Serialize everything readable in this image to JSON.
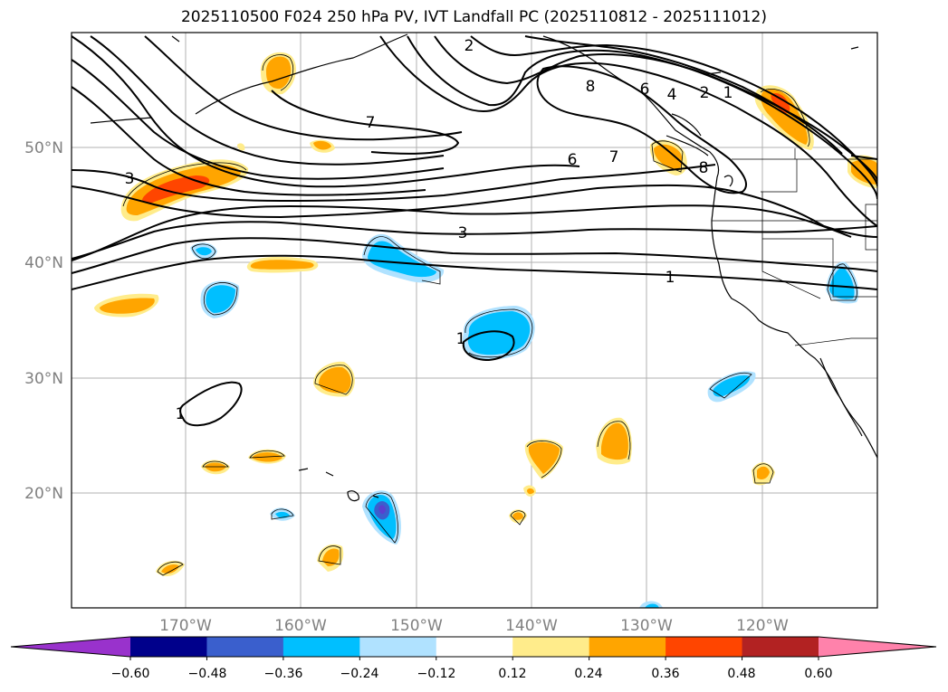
{
  "title": "2025110500 F024 250 hPa PV, IVT Landfall PC (2025110812 - 2025111012)",
  "map": {
    "lat_labels": [
      "50°N",
      "40°N",
      "30°N",
      "20°N"
    ],
    "lon_labels": [
      "170°W",
      "160°W",
      "150°W",
      "140°W",
      "130°W",
      "120°W"
    ],
    "contour_labels": [
      "2",
      "8",
      "6",
      "4",
      "2",
      "1",
      "7",
      "3",
      "6",
      "7",
      "8",
      "3",
      "1",
      "1",
      "1"
    ]
  },
  "colorbar": {
    "ticks": [
      "−0.60",
      "−0.48",
      "−0.36",
      "−0.24",
      "−0.12",
      "0.12",
      "0.24",
      "0.36",
      "0.48",
      "0.60"
    ],
    "colors": [
      "#9932cc",
      "#00008b",
      "#3a5fcd",
      "#00bfff",
      "#b0e2ff",
      "#ffffff",
      "#ffec8b",
      "#ffa500",
      "#ff4500",
      "#b22222",
      "#ff82ab"
    ]
  },
  "colors": {
    "neg_weak": "#b0e2ff",
    "neg_mid": "#00bfff",
    "neg_strong": "#3a5fcd",
    "neg_max": "#5a3fcf",
    "pos_weak": "#ffec8b",
    "pos_mid": "#ffa500",
    "pos_strong": "#ff4500"
  }
}
